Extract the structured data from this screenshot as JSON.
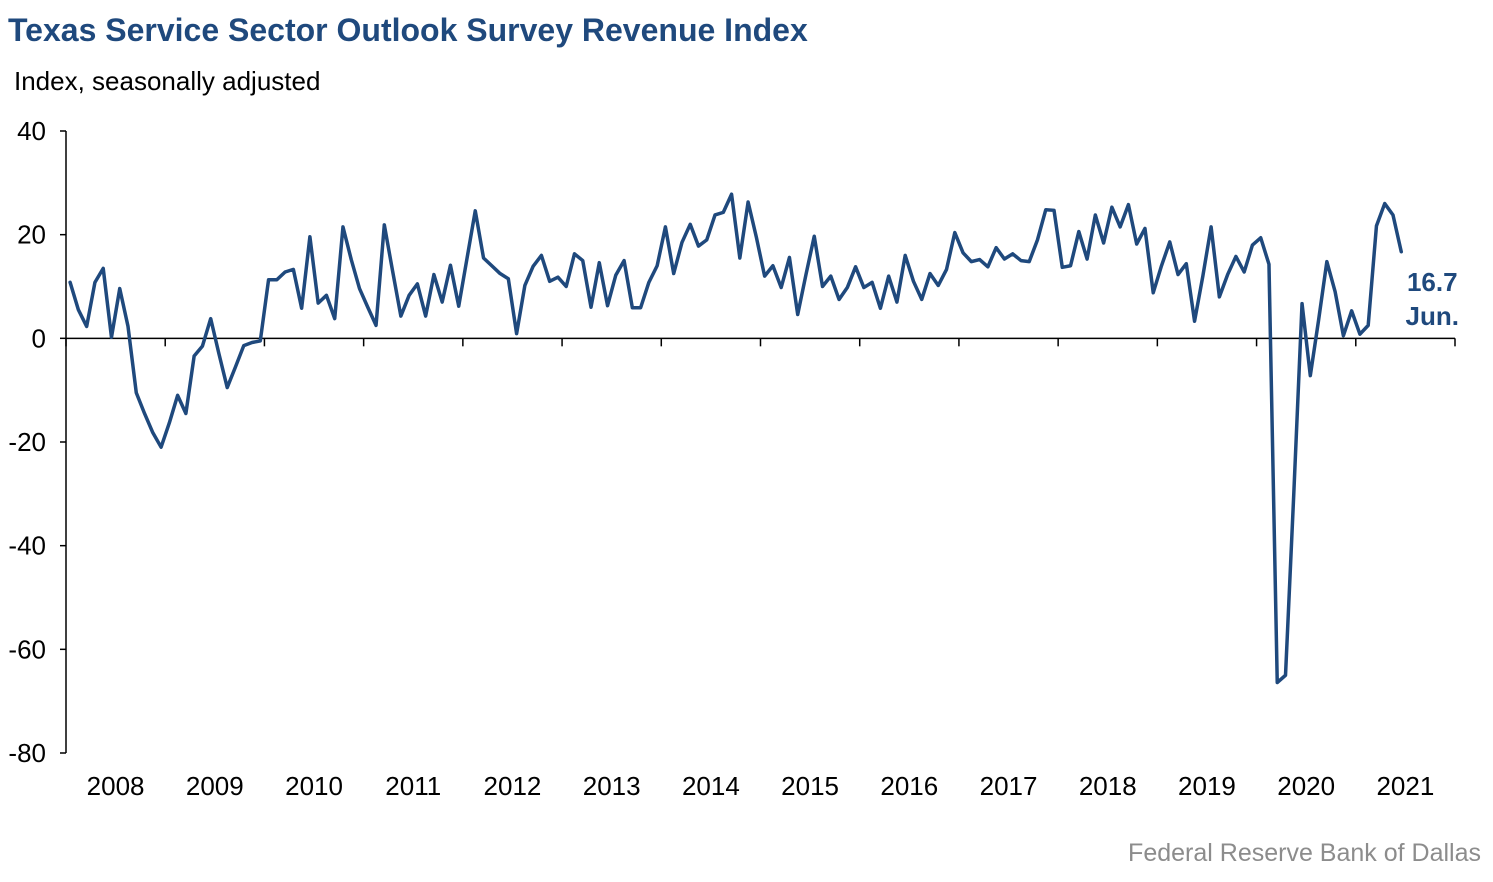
{
  "title": "Texas Service Sector Outlook Survey Revenue Index",
  "subtitle": "Index, seasonally adjusted",
  "source": "Federal Reserve Bank of Dallas",
  "colors": {
    "title": "#1F497D",
    "line": "#1F497D",
    "axis": "#000000",
    "source": "#8C8C8C"
  },
  "chart_data": {
    "type": "line",
    "title": "Texas Service Sector Outlook Survey Revenue Index",
    "ylabel": "Index, seasonally adjusted",
    "xlabel": "",
    "ylim": [
      -80,
      40
    ],
    "yticks": [
      "40",
      "20",
      "0",
      "-20",
      "-40",
      "-60",
      "-80"
    ],
    "xlim": [
      "2008-01",
      "2021-12"
    ],
    "xticks": [
      "2008",
      "2009",
      "2010",
      "2011",
      "2012",
      "2013",
      "2014",
      "2015",
      "2016",
      "2017",
      "2018",
      "2019",
      "2020",
      "2021"
    ],
    "grid": false,
    "start": "2008-01",
    "frequency": "monthly",
    "series": [
      {
        "values": [
          10.8,
          5.5,
          2.3,
          10.8,
          13.5,
          0.2,
          9.6,
          2.3,
          -10.5,
          -14.5,
          -18.2,
          -21.0,
          -16.3,
          -11.0,
          -14.5,
          -3.4,
          -1.5,
          3.8,
          -3.0,
          -9.5,
          -5.5,
          -1.4,
          -0.8,
          -0.5,
          11.3,
          11.3,
          12.8,
          13.3,
          5.8,
          19.6,
          6.8,
          8.3,
          3.8,
          21.5,
          15.2,
          9.6,
          6.0,
          2.5,
          21.9,
          13.0,
          4.3,
          8.3,
          10.5,
          4.3,
          12.3,
          7.0,
          14.1,
          6.2,
          15.4,
          24.6,
          15.5,
          14.0,
          12.5,
          11.5,
          0.9,
          10.2,
          13.9,
          16.0,
          11.0,
          11.8,
          10.0,
          16.3,
          15.0,
          6.0,
          14.6,
          6.3,
          12.2,
          15.0,
          5.9,
          5.9,
          10.8,
          14.0,
          21.5,
          12.5,
          18.5,
          22.0,
          17.8,
          19.0,
          23.8,
          24.3,
          27.8,
          15.5,
          26.3,
          19.5,
          12.0,
          14.0,
          9.8,
          15.6,
          4.6,
          12.3,
          19.7,
          10.0,
          12.0,
          7.5,
          9.8,
          13.8,
          9.8,
          10.8,
          5.8,
          12.0,
          7.0,
          16.0,
          11.0,
          7.5,
          12.5,
          10.2,
          13.3,
          20.4,
          16.5,
          14.8,
          15.2,
          13.8,
          17.5,
          15.3,
          16.3,
          15.0,
          14.8,
          19.0,
          24.8,
          24.7,
          13.7,
          14.0,
          20.6,
          15.3,
          23.8,
          18.4,
          25.3,
          21.5,
          25.8,
          18.2,
          21.2,
          8.8,
          14.0,
          18.6,
          12.3,
          14.4,
          3.3,
          12.0,
          21.5,
          8.0,
          12.3,
          15.8,
          12.8,
          18.0,
          19.4,
          14.3,
          -66.4,
          -65.0,
          -30.0,
          6.7,
          -7.2,
          3.5,
          14.8,
          9.0,
          0.5,
          5.3,
          0.8,
          2.5,
          21.7,
          26.0,
          23.8,
          16.7
        ]
      }
    ],
    "annotation": {
      "value": "16.7",
      "label": "Jun."
    }
  }
}
